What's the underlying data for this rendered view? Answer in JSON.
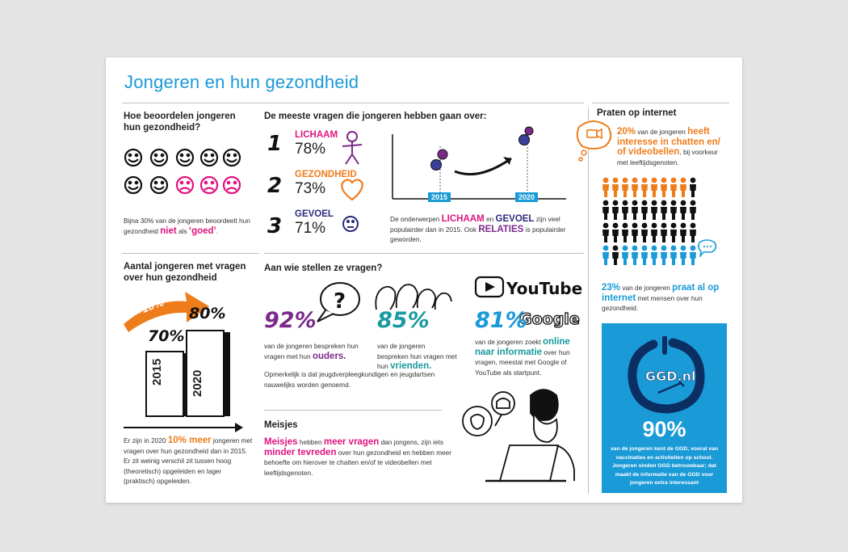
{
  "title": "Jongeren en hun gezondheid",
  "beoordelen": {
    "heading": "Hoe beoordelen jongeren hun gezondheid?",
    "text_pre": "Bijna 30% van de jongeren beoordeelt hun gezondheid ",
    "text_niet": "niet",
    "text_mid": " als ",
    "text_goed": "‘goed’",
    "text_end": "."
  },
  "meeste": {
    "heading": "De meeste vragen die jongeren hebben gaan over:",
    "items": [
      {
        "rank": "1",
        "label": "LICHAAM",
        "pct": "78%"
      },
      {
        "rank": "2",
        "label": "GEZONDHEID",
        "pct": "73%"
      },
      {
        "rank": "3",
        "label": "GEVOEL",
        "pct": "71%"
      }
    ],
    "year1": "2015",
    "year2": "2020",
    "desc_pre": "De onderwerpen ",
    "desc_lichaam": "LICHAAM",
    "desc_en": " en ",
    "desc_gevoel": "GEVOEL",
    "desc_mid": " zijn veel populairder dan in 2015. Ook ",
    "desc_relaties": "RELATIES",
    "desc_end": " is populairder geworden."
  },
  "aantal": {
    "heading": "Aantal jongeren met vragen over hun gezondheid",
    "arrow_label": "+10%",
    "pct_2015": "70%",
    "pct_2020": "80%",
    "bar_2015": "2015",
    "bar_2020": "2020",
    "text_pre": "Er zijn in 2020 ",
    "text_hl": "10% meer",
    "text_end": " jongeren met vragen over hun gezondheid dan in 2015. Er zit weinig verschil zit tussen hoog (theoretisch) opgeleiden en lager (praktisch) opgeleiden."
  },
  "wie": {
    "heading": "Aan wie stellen ze vragen?",
    "ouders_pct": "92%",
    "ouders_pre": "van de jongeren bespreken hun vragen met hun ",
    "ouders_hl": "ouders.",
    "vrienden_pct": "85%",
    "vrienden_pre": "van de jongeren bespreken hun vragen met hun ",
    "vrienden_hl": "vrienden.",
    "online_pct": "81%",
    "online_pre": "van de jongeren zoekt ",
    "online_hl": "online naar informatie",
    "online_end": " over hun vragen, meestal met Google of YouTube als startpunt.",
    "youtube": "YouTube",
    "google": "Google",
    "note": "Opmerkelijk is dat jeugdverpleegkundigen en jeugdartsen nauwelijks worden genoemd."
  },
  "meisjes": {
    "heading": "Meisjes",
    "w1": "Meisjes",
    "t1": " hebben ",
    "w2": "meer vragen",
    "t2": " dan jongens, zijn iets ",
    "w3": "minder tevreden",
    "t3": " over hun gezondheid en hebben meer behoefte om hierover te chatten en/of te videobellen met leeftijdsgenoten."
  },
  "internet": {
    "heading": "Praten op internet",
    "p1_pct": "20%",
    "p1_mid": " van de jongeren ",
    "p1_hl": "heeft interesse in chatten en/ of videobellen",
    "p1_end": ", bij voorkeur met leeftijdsgenoten.",
    "p2_pct": "23%",
    "p2_mid": " van de jongeren ",
    "p2_hl": "praat al op internet",
    "p2_end": " met mensen over hun gezondheid."
  },
  "ggd": {
    "logo": "GGD.nl",
    "pct": "90%",
    "text": "van de jongeren kent de GGD, vooral van vaccinaties en activiteiten op school. Jongeren vinden GGD betrouwbaar; dat maakt de informatie van de GGD voor jongeren extra interessant"
  },
  "colors": {
    "blue": "#1a9ad7",
    "pink": "#e0137f",
    "orange": "#ef7c1a",
    "purple": "#7b2a8c",
    "navy": "#2c2a7a",
    "teal": "#1a9aa0"
  },
  "icons": [
    "smiley-face-icon",
    "sad-face-icon",
    "stick-figure-icon",
    "heart-icon",
    "question-bubble-icon",
    "people-heads-icon",
    "youtube-logo-icon",
    "google-logo-icon",
    "person-icon",
    "chat-bubble-icon",
    "laptop-girl-icon"
  ]
}
